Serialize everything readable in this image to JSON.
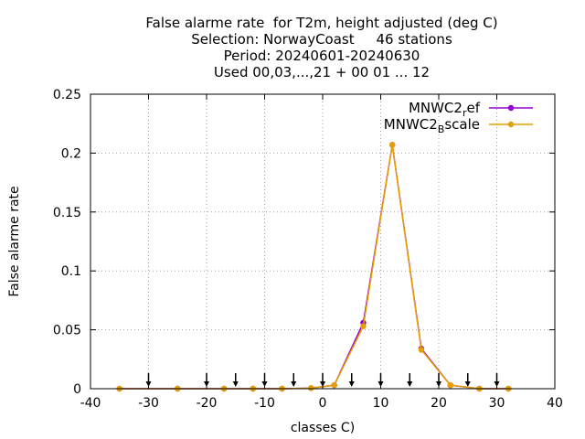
{
  "chart_data": {
    "type": "line",
    "title_lines": [
      "False alarme rate  for T2m, height adjusted (deg C)",
      "Selection: NorwayCoast     46 stations",
      "Period: 20240601-20240630",
      "Used 00,03,...,21 + 00 01 ... 12"
    ],
    "xlabel": "classes C)",
    "ylabel": "False alarme rate",
    "xlim": [
      -40,
      40
    ],
    "ylim": [
      0,
      0.25
    ],
    "x_ticks": [
      -40,
      -30,
      -20,
      -10,
      0,
      10,
      20,
      30,
      40
    ],
    "x_tick_labels": [
      "-40",
      "-30",
      "-20",
      "-10",
      "0",
      "10",
      "20",
      "30",
      "40"
    ],
    "y_ticks": [
      0,
      0.05,
      0.1,
      0.15,
      0.2,
      0.25
    ],
    "y_tick_labels": [
      "0",
      "0.05",
      "0.1",
      "0.15",
      "0.2",
      "0.25"
    ],
    "grid": true,
    "legend_position": "top-right",
    "arrows_x": [
      -30,
      -20,
      -15,
      -10,
      -5,
      0,
      5,
      10,
      15,
      20,
      25,
      30
    ],
    "series": [
      {
        "name": "MNWC2_ref",
        "legend_main": "MNWC2",
        "legend_sub": "r",
        "legend_rest": "ef",
        "color": "#9400d3",
        "x": [
          -35,
          -25,
          -17,
          -12,
          -7,
          -2,
          2,
          7,
          12,
          17,
          22,
          27,
          32
        ],
        "values": [
          0,
          0,
          0,
          0,
          0,
          0.0005,
          0.003,
          0.056,
          0.207,
          0.034,
          0.003,
          0,
          0
        ]
      },
      {
        "name": "MNWC2_Bscale",
        "legend_main": "MNWC2",
        "legend_sub": "B",
        "legend_rest": "scale",
        "color": "#e69f00",
        "x": [
          -35,
          -25,
          -17,
          -12,
          -7,
          -2,
          2,
          7,
          12,
          17,
          22,
          27,
          32
        ],
        "values": [
          0,
          0,
          0,
          0,
          0,
          0.0005,
          0.003,
          0.053,
          0.207,
          0.033,
          0.003,
          0,
          0
        ]
      }
    ]
  }
}
